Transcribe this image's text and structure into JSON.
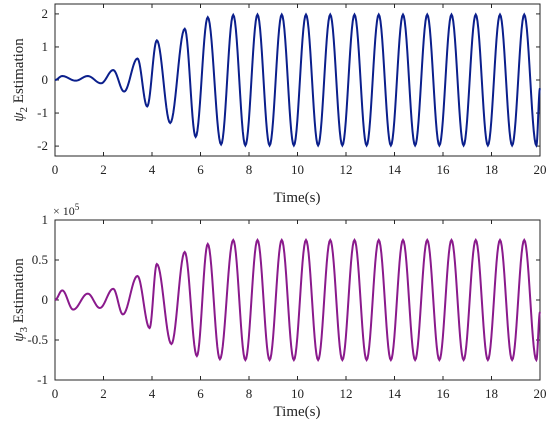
{
  "chart_data": [
    {
      "type": "line",
      "xlabel": "Time(s)",
      "ylabel_symbol": "ψ",
      "ylabel_subscript": "2",
      "ylabel_text": " Estimation",
      "xlim": [
        0,
        20
      ],
      "ylim": [
        -2.3,
        2.3
      ],
      "xticks": [
        0,
        2,
        4,
        6,
        8,
        10,
        12,
        14,
        16,
        18,
        20
      ],
      "xtick_labels": [
        "0",
        "2",
        "4",
        "6",
        "8",
        "10",
        "12",
        "14",
        "16",
        "18",
        "20"
      ],
      "yticks": [
        -2,
        -1,
        0,
        1,
        2
      ],
      "ytick_labels": [
        "-2",
        "-1",
        "0",
        "1",
        "2"
      ],
      "grid": false,
      "series": [
        {
          "color": "#0b1f8c",
          "peak_times": [
            0.3,
            1.35,
            2.4,
            3.4,
            4.2,
            5.35,
            6.3,
            7.35,
            8.35,
            9.35,
            10.35,
            11.35,
            12.35,
            13.35,
            14.35,
            15.35,
            16.35,
            17.35,
            18.35,
            19.35
          ],
          "peak_values": [
            0.12,
            0.12,
            0.3,
            0.65,
            1.2,
            1.55,
            1.9,
            1.97,
            1.98,
            1.98,
            1.98,
            1.98,
            1.98,
            1.98,
            1.98,
            1.98,
            1.98,
            1.98,
            1.98,
            1.98
          ],
          "trough_times": [
            0.85,
            1.9,
            2.85,
            3.8,
            4.75,
            5.8,
            6.85,
            7.85,
            8.85,
            9.85,
            10.85,
            11.85,
            12.85,
            13.85,
            14.85,
            15.85,
            16.85,
            17.85,
            18.85,
            19.85
          ],
          "trough_values": [
            -0.02,
            -0.1,
            -0.35,
            -0.8,
            -1.3,
            -1.72,
            -1.95,
            -1.98,
            -1.98,
            -1.98,
            -1.98,
            -1.98,
            -1.98,
            -1.98,
            -1.98,
            -1.98,
            -1.98,
            -1.98,
            -1.98,
            -1.98
          ],
          "start_value": 0.0,
          "end_value": -0.25
        }
      ]
    },
    {
      "type": "line",
      "xlabel": "Time(s)",
      "ylabel_symbol": "ψ",
      "ylabel_subscript": "3",
      "ylabel_text": " Estimation",
      "y_exponent_base": "× 10",
      "y_exponent": "5",
      "xlim": [
        0,
        20
      ],
      "ylim": [
        -100000,
        100000
      ],
      "xticks": [
        0,
        2,
        4,
        6,
        8,
        10,
        12,
        14,
        16,
        18,
        20
      ],
      "xtick_labels": [
        "0",
        "2",
        "4",
        "6",
        "8",
        "10",
        "12",
        "14",
        "16",
        "18",
        "20"
      ],
      "yticks": [
        -100000,
        -50000,
        0,
        50000,
        100000
      ],
      "ytick_labels": [
        "-1",
        "-0.5",
        "0",
        "0.5",
        "1"
      ],
      "grid": false,
      "series": [
        {
          "color": "#8a1a8c",
          "peak_times": [
            0.3,
            1.35,
            2.4,
            3.4,
            4.2,
            5.35,
            6.3,
            7.35,
            8.35,
            9.35,
            10.35,
            11.35,
            12.35,
            13.35,
            14.35,
            15.35,
            16.35,
            17.35,
            18.35,
            19.35
          ],
          "peak_values": [
            12000,
            8000,
            14000,
            30000,
            45000,
            60000,
            70000,
            75000,
            75000,
            75000,
            75000,
            75000,
            75000,
            75000,
            75000,
            75000,
            75000,
            75000,
            75000,
            75000
          ],
          "trough_times": [
            0.75,
            1.85,
            2.8,
            3.9,
            4.8,
            5.85,
            6.8,
            7.85,
            8.85,
            9.85,
            10.85,
            11.85,
            12.85,
            13.85,
            14.85,
            15.85,
            16.85,
            17.85,
            18.85,
            19.85
          ],
          "trough_values": [
            -12000,
            -10000,
            -18000,
            -35000,
            -55000,
            -70000,
            -74000,
            -75000,
            -75000,
            -75000,
            -75000,
            -75000,
            -75000,
            -75000,
            -75000,
            -75000,
            -75000,
            -75000,
            -75000,
            -75000
          ],
          "start_value": 0,
          "end_value": -15000
        }
      ]
    }
  ]
}
